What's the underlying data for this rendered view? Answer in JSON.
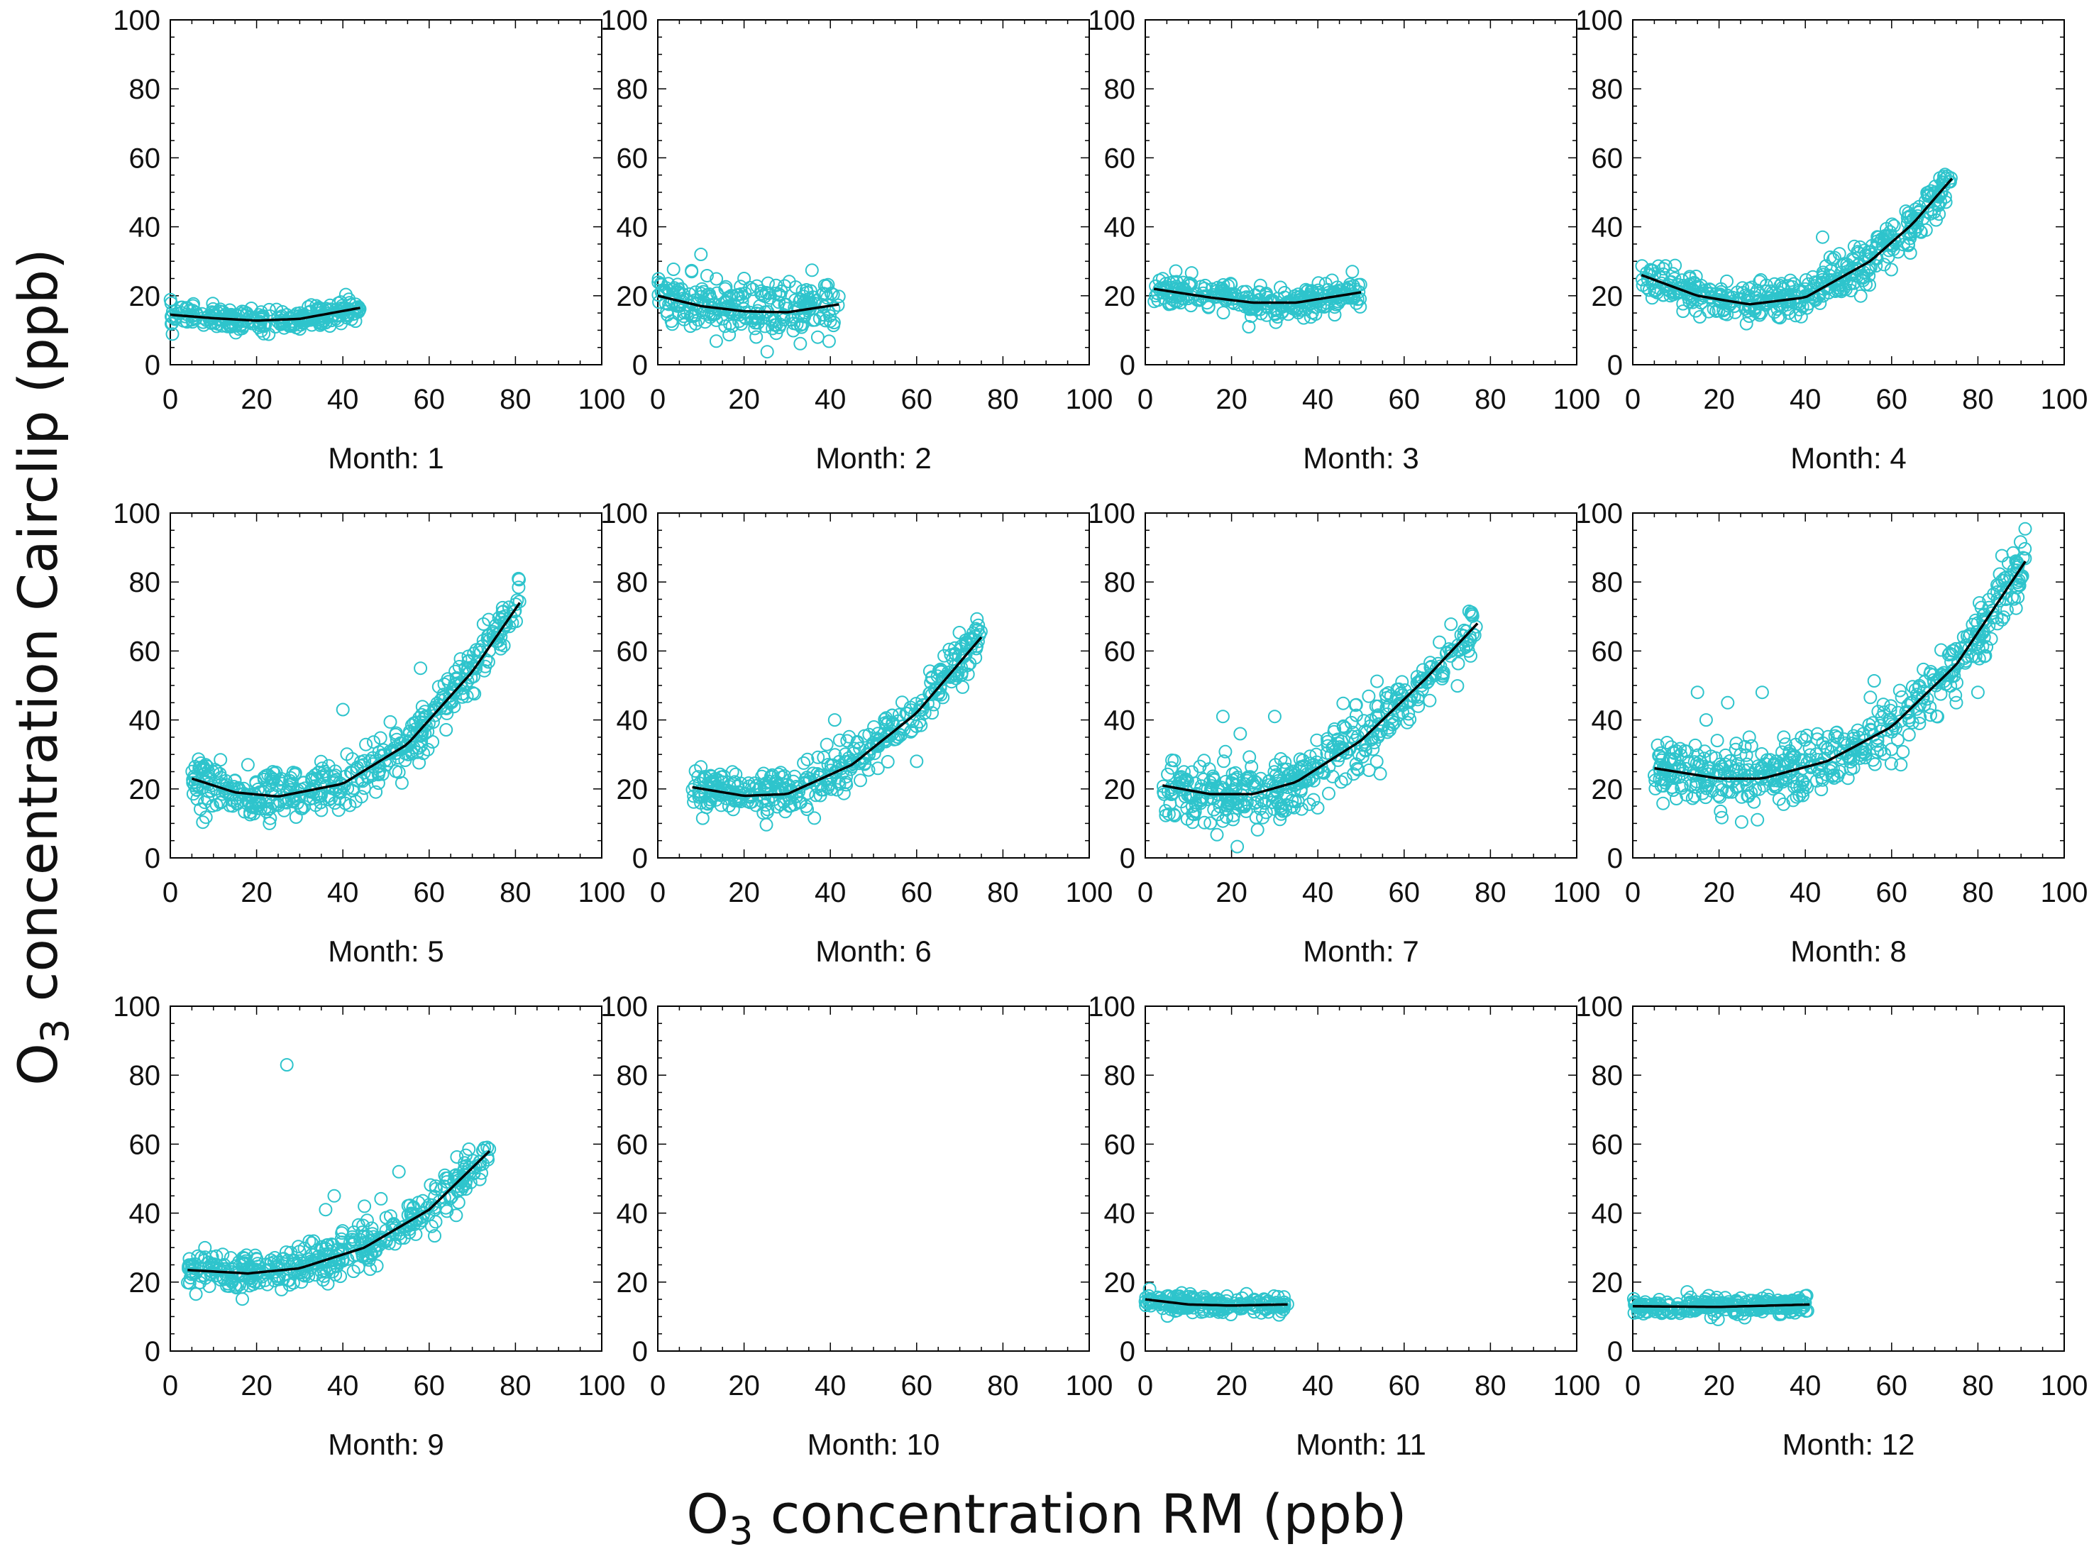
{
  "chart_data": {
    "type": "scatter",
    "layout": "3x4 small multiples",
    "xlabel": {
      "prefix": "O",
      "subscript": "3",
      "suffix": " concentration RM (ppb)"
    },
    "ylabel": {
      "prefix": "O",
      "subscript": "3",
      "suffix": " concentration Cairclip (ppb)"
    },
    "xlim": [
      0,
      100
    ],
    "ylim": [
      0,
      100
    ],
    "xticks": [
      "0",
      "20",
      "40",
      "60",
      "80",
      "100"
    ],
    "yticks": [
      "0",
      "20",
      "40",
      "60",
      "80",
      "100"
    ],
    "grid": false,
    "marker_color": "#2ec4cc",
    "fit_color": "#000000",
    "panels": [
      {
        "label": "Month: 1",
        "x_range": [
          0,
          44
        ],
        "spread": 1.6,
        "fit": {
          "x": [
            0,
            10,
            20,
            30,
            44
          ],
          "y": [
            14.5,
            13.5,
            12.8,
            13.3,
            16.5
          ]
        },
        "outliers": []
      },
      {
        "label": "Month: 2",
        "x_range": [
          0,
          42
        ],
        "spread": 4.0,
        "fit": {
          "x": [
            0,
            10,
            20,
            30,
            42
          ],
          "y": [
            20,
            17,
            15.5,
            15.2,
            17.5
          ]
        },
        "outliers": [
          [
            10,
            32
          ],
          [
            20,
            25
          ]
        ]
      },
      {
        "label": "Month: 3",
        "x_range": [
          2,
          50
        ],
        "spread": 2.0,
        "fit": {
          "x": [
            2,
            15,
            25,
            35,
            50
          ],
          "y": [
            22,
            19.5,
            18,
            18,
            21
          ]
        },
        "outliers": [
          [
            24,
            11
          ],
          [
            48,
            27
          ]
        ]
      },
      {
        "label": "Month: 4",
        "x_range": [
          2,
          74
        ],
        "spread": 3.0,
        "fit": {
          "x": [
            2,
            15,
            27,
            40,
            55,
            65,
            74
          ],
          "y": [
            26,
            20,
            17.5,
            19.5,
            30,
            41,
            54
          ]
        },
        "outliers": [
          [
            44,
            37
          ],
          [
            66,
            40
          ]
        ]
      },
      {
        "label": "Month: 5",
        "x_range": [
          5,
          81
        ],
        "spread": 3.5,
        "fit": {
          "x": [
            5,
            15,
            25,
            40,
            55,
            70,
            81
          ],
          "y": [
            23,
            19,
            17.8,
            21.5,
            33,
            54,
            74
          ]
        },
        "outliers": [
          [
            40,
            43
          ],
          [
            18,
            27
          ],
          [
            58,
            55
          ],
          [
            23,
            10
          ]
        ]
      },
      {
        "label": "Month: 6",
        "x_range": [
          8,
          75
        ],
        "spread": 3.5,
        "fit": {
          "x": [
            8,
            20,
            30,
            45,
            60,
            75
          ],
          "y": [
            20.5,
            18,
            18.5,
            27,
            42,
            64
          ]
        },
        "outliers": [
          [
            41,
            40
          ],
          [
            60,
            28
          ]
        ]
      },
      {
        "label": "Month: 7",
        "x_range": [
          4,
          77
        ],
        "spread": 4.5,
        "fit": {
          "x": [
            4,
            15,
            25,
            35,
            50,
            65,
            77
          ],
          "y": [
            21,
            18.5,
            18.5,
            22,
            34,
            52,
            68
          ]
        },
        "outliers": [
          [
            18,
            41
          ],
          [
            22,
            36
          ],
          [
            30,
            41
          ]
        ]
      },
      {
        "label": "Month: 8",
        "x_range": [
          5,
          91
        ],
        "spread": 4.5,
        "fit": {
          "x": [
            5,
            20,
            30,
            45,
            60,
            75,
            91
          ],
          "y": [
            26,
            23,
            23,
            28,
            38,
            56,
            86
          ]
        },
        "outliers": [
          [
            15,
            48
          ],
          [
            22,
            45
          ],
          [
            30,
            48
          ],
          [
            27,
            35
          ],
          [
            17,
            40
          ],
          [
            25,
            30
          ],
          [
            35,
            35
          ],
          [
            80,
            48
          ],
          [
            75,
            45
          ]
        ]
      },
      {
        "label": "Month: 9",
        "x_range": [
          4,
          74
        ],
        "spread": 3.0,
        "fit": {
          "x": [
            4,
            18,
            30,
            45,
            60,
            74
          ],
          "y": [
            23.5,
            22.5,
            24,
            30,
            41,
            58
          ]
        },
        "outliers": [
          [
            27,
            83
          ],
          [
            36,
            41
          ],
          [
            38,
            45
          ],
          [
            45,
            42
          ],
          [
            53,
            52
          ]
        ]
      },
      {
        "label": "Month: 10",
        "x_range": null,
        "spread": 0,
        "fit": null,
        "outliers": []
      },
      {
        "label": "Month: 11",
        "x_range": [
          0,
          33
        ],
        "spread": 1.3,
        "fit": {
          "x": [
            0,
            10,
            20,
            32
          ],
          "y": [
            15,
            13.5,
            13.2,
            13.5
          ]
        },
        "outliers": [
          [
            1,
            18
          ]
        ]
      },
      {
        "label": "Month: 12",
        "x_range": [
          0,
          41
        ],
        "spread": 1.3,
        "fit": {
          "x": [
            0,
            20,
            41
          ],
          "y": [
            13,
            12.8,
            13.5
          ]
        },
        "outliers": [
          [
            40,
            16
          ]
        ]
      }
    ]
  }
}
